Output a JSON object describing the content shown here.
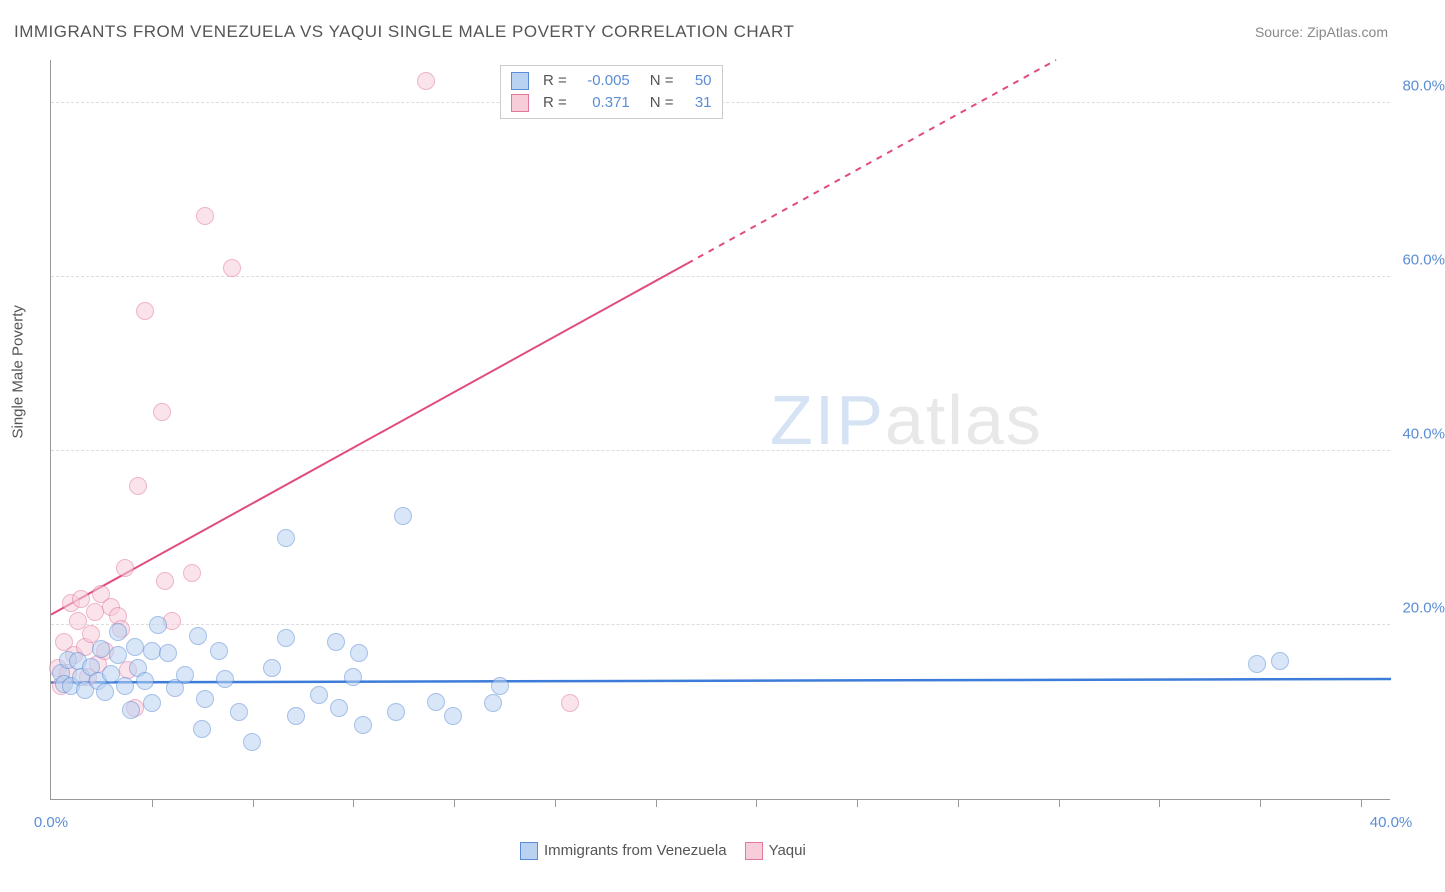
{
  "title": "IMMIGRANTS FROM VENEZUELA VS YAQUI SINGLE MALE POVERTY CORRELATION CHART",
  "source": "Source: ZipAtlas.com",
  "ylabel": "Single Male Poverty",
  "watermark": {
    "zip": "ZIP",
    "atlas": "atlas"
  },
  "chart": {
    "type": "scatter",
    "background_color": "#ffffff",
    "grid_color": "#dddddd",
    "axis_color": "#999999",
    "xlim": [
      0,
      40
    ],
    "ylim": [
      0,
      85
    ],
    "x_tick_start_label": "0.0%",
    "x_tick_end_label": "40.0%",
    "y_tick_labels": [
      "20.0%",
      "40.0%",
      "60.0%",
      "80.0%"
    ],
    "y_tick_values": [
      20,
      40,
      60,
      80
    ],
    "x_minor_tick_count": 13,
    "point_radius": 9,
    "point_opacity": 0.55,
    "series": [
      {
        "name": "Immigrants from Venezuela",
        "fill": "#b9d2f1",
        "stroke": "#5b8dd6",
        "trend_color": "#3d7cd9",
        "trend_width": 2.5,
        "trend": {
          "x1": 0,
          "y1": 13.5,
          "x2": 40,
          "y2": 13.9,
          "dashed": false
        },
        "R": "-0.005",
        "N": "50",
        "points": [
          [
            0.3,
            14.5
          ],
          [
            0.4,
            13.2
          ],
          [
            0.5,
            16.0
          ],
          [
            0.6,
            13.0
          ],
          [
            0.8,
            15.8
          ],
          [
            0.9,
            14.0
          ],
          [
            1.0,
            12.5
          ],
          [
            1.2,
            15.2
          ],
          [
            1.4,
            13.6
          ],
          [
            1.5,
            17.2
          ],
          [
            1.6,
            12.3
          ],
          [
            1.8,
            14.4
          ],
          [
            2.0,
            19.2
          ],
          [
            2.0,
            16.5
          ],
          [
            2.2,
            13.0
          ],
          [
            2.4,
            10.2
          ],
          [
            2.5,
            17.5
          ],
          [
            2.6,
            15.0
          ],
          [
            2.8,
            13.5
          ],
          [
            3.0,
            17.0
          ],
          [
            3.0,
            11.0
          ],
          [
            3.2,
            20.0
          ],
          [
            3.5,
            16.8
          ],
          [
            3.7,
            12.8
          ],
          [
            4.0,
            14.2
          ],
          [
            4.4,
            18.7
          ],
          [
            4.5,
            8.0
          ],
          [
            4.6,
            11.5
          ],
          [
            5.0,
            17.0
          ],
          [
            5.2,
            13.8
          ],
          [
            5.6,
            10.0
          ],
          [
            6.0,
            6.5
          ],
          [
            6.6,
            15.0
          ],
          [
            7.0,
            18.5
          ],
          [
            7.0,
            30.0
          ],
          [
            7.3,
            9.5
          ],
          [
            8.0,
            12.0
          ],
          [
            8.5,
            18.0
          ],
          [
            8.6,
            10.5
          ],
          [
            9.0,
            14.0
          ],
          [
            9.2,
            16.8
          ],
          [
            9.3,
            8.5
          ],
          [
            10.3,
            10.0
          ],
          [
            10.5,
            32.5
          ],
          [
            11.5,
            11.2
          ],
          [
            12.0,
            9.5
          ],
          [
            13.2,
            11.0
          ],
          [
            13.4,
            13.0
          ],
          [
            36.0,
            15.5
          ],
          [
            36.7,
            15.8
          ]
        ]
      },
      {
        "name": "Yaqui",
        "fill": "#f6cdd9",
        "stroke": "#e2789c",
        "trend_color": "#e04d7c",
        "trend_width": 2,
        "trend": {
          "x1": 0,
          "y1": 21.3,
          "x2": 30,
          "y2": 85,
          "dashed_after_x": 19
        },
        "R": "0.371",
        "N": "31",
        "points": [
          [
            0.2,
            15.0
          ],
          [
            0.3,
            13.0
          ],
          [
            0.4,
            18.0
          ],
          [
            0.5,
            14.5
          ],
          [
            0.6,
            22.5
          ],
          [
            0.7,
            16.5
          ],
          [
            0.8,
            20.5
          ],
          [
            0.9,
            23.0
          ],
          [
            1.0,
            17.5
          ],
          [
            1.1,
            14.0
          ],
          [
            1.2,
            19.0
          ],
          [
            1.3,
            21.5
          ],
          [
            1.4,
            15.5
          ],
          [
            1.5,
            23.5
          ],
          [
            1.6,
            17.0
          ],
          [
            1.8,
            22.0
          ],
          [
            2.0,
            21.0
          ],
          [
            2.1,
            19.5
          ],
          [
            2.2,
            26.5
          ],
          [
            2.3,
            14.8
          ],
          [
            2.5,
            10.5
          ],
          [
            2.6,
            36.0
          ],
          [
            2.8,
            56.0
          ],
          [
            3.3,
            44.5
          ],
          [
            3.4,
            25.0
          ],
          [
            3.6,
            20.5
          ],
          [
            4.2,
            26.0
          ],
          [
            4.6,
            67.0
          ],
          [
            5.4,
            61.0
          ],
          [
            11.2,
            82.5
          ],
          [
            15.5,
            11.0
          ]
        ]
      }
    ],
    "legend_top": {
      "R_label": "R =",
      "N_label": "N ="
    },
    "legend_bottom": [
      {
        "label": "Immigrants from Venezuela",
        "fill": "#b9d2f1",
        "stroke": "#5b8dd6"
      },
      {
        "label": "Yaqui",
        "fill": "#f6cdd9",
        "stroke": "#e2789c"
      }
    ]
  }
}
